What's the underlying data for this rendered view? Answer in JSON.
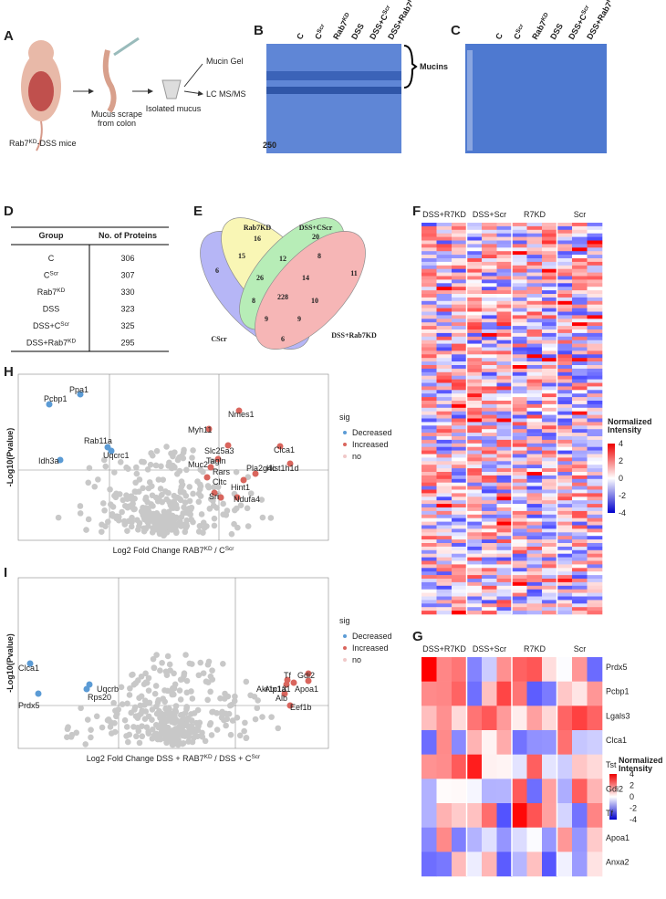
{
  "panels": {
    "a": {
      "letter": "A",
      "mouse": [
        "Rab7",
        "KD",
        "-DSS mice"
      ],
      "scrape": [
        "Mucus scrape",
        "from colon"
      ],
      "isolated": "Isolated mucus",
      "out1": "Mucin Gel",
      "out2": "LC MS/MS"
    },
    "b": {
      "letter": "B",
      "lanes": [
        [
          "C"
        ],
        [
          "C",
          "Scr"
        ],
        [
          "Rab7",
          "KD"
        ],
        [
          "DSS"
        ],
        [
          "DSS+C",
          "Scr"
        ],
        [
          "DSS+Rab7",
          "KD"
        ]
      ],
      "bracket": "Mucins",
      "marker": "250"
    },
    "c": {
      "letter": "C",
      "lanes": [
        [
          "C"
        ],
        [
          "C",
          "Scr"
        ],
        [
          "Rab7",
          "KD"
        ],
        [
          "DSS"
        ],
        [
          "DSS+C",
          "Scr"
        ],
        [
          "DSS+Rab7",
          "KD"
        ]
      ]
    },
    "d": {
      "letter": "D",
      "headers": [
        "Group",
        "No. of Proteins"
      ],
      "rows": [
        [
          [
            "C"
          ],
          306
        ],
        [
          [
            "C",
            "Scr"
          ],
          307
        ],
        [
          [
            "Rab7",
            "KD"
          ],
          330
        ],
        [
          [
            "DSS"
          ],
          323
        ],
        [
          [
            "DSS+C",
            "Scr"
          ],
          325
        ],
        [
          [
            "DSS+Rab7",
            "KD"
          ],
          295
        ]
      ]
    },
    "e": {
      "letter": "E",
      "sets": [
        "Rab7KD",
        "DSS+CScr",
        "CScr",
        "DSS+Rab7KD"
      ],
      "counts": [
        16,
        20,
        6,
        15,
        12,
        8,
        11,
        26,
        14,
        228,
        8,
        10,
        9,
        9,
        6
      ]
    },
    "f": {
      "letter": "F",
      "columns": [
        "DSS+R7KD",
        "DSS+Scr",
        "R7KD",
        "Scr"
      ],
      "legend_title": [
        "Normalized",
        "Intensity"
      ],
      "legend_ticks": [
        4,
        2,
        0,
        -2,
        -4
      ]
    },
    "g": {
      "letter": "G",
      "columns": [
        "DSS+R7KD",
        "DSS+Scr",
        "R7KD",
        "Scr"
      ],
      "rows": [
        "Prdx5",
        "Pcbp1",
        "Lgals3",
        "Clca1",
        "Tst",
        "Gdi2",
        "Tf",
        "Apoa1",
        "Anxa2"
      ],
      "legend_title": [
        "Normalized",
        "Intensity"
      ],
      "legend_ticks": [
        4,
        2,
        0,
        -2,
        -4
      ]
    },
    "h": {
      "letter": "H",
      "ylabel": "-Log10(Pvalue)",
      "xlabel": [
        "Log2 Fold Change  RAB7",
        "KD",
        " / C",
        "Scr"
      ],
      "decreased": [
        "Pcbp1",
        "Ppa1",
        "Rab11a",
        "Uqcrc1",
        "Idh3a"
      ],
      "increased": [
        "Nmes1",
        "Myh11",
        "Slc25a3",
        "Clca1",
        "Tagln",
        "Muc2",
        "Rars",
        "Pla2g4c",
        "Cltc",
        "Hint1",
        "Ndufa4",
        "Sri",
        "Hist1h1d"
      ],
      "legend_title": "sig",
      "legend": [
        "Decreased",
        "Increased",
        "no"
      ]
    },
    "i": {
      "letter": "I",
      "ylabel": "-Log10(Pvalue)",
      "xlabel": [
        "Log2 Fold Change DSS + RAB7",
        "KD",
        " / DSS + C",
        "Scr"
      ],
      "decreased": [
        "Clca1",
        "Prdx5",
        "Uqcrb",
        "Rps20"
      ],
      "increased": [
        "Tf",
        "Gdi2",
        "Akr1c13",
        "Atp1a1",
        "Apoa1",
        "Alb",
        "Eef1b"
      ],
      "legend_title": "sig",
      "legend": [
        "Decreased",
        "Increased",
        "no"
      ]
    }
  }
}
